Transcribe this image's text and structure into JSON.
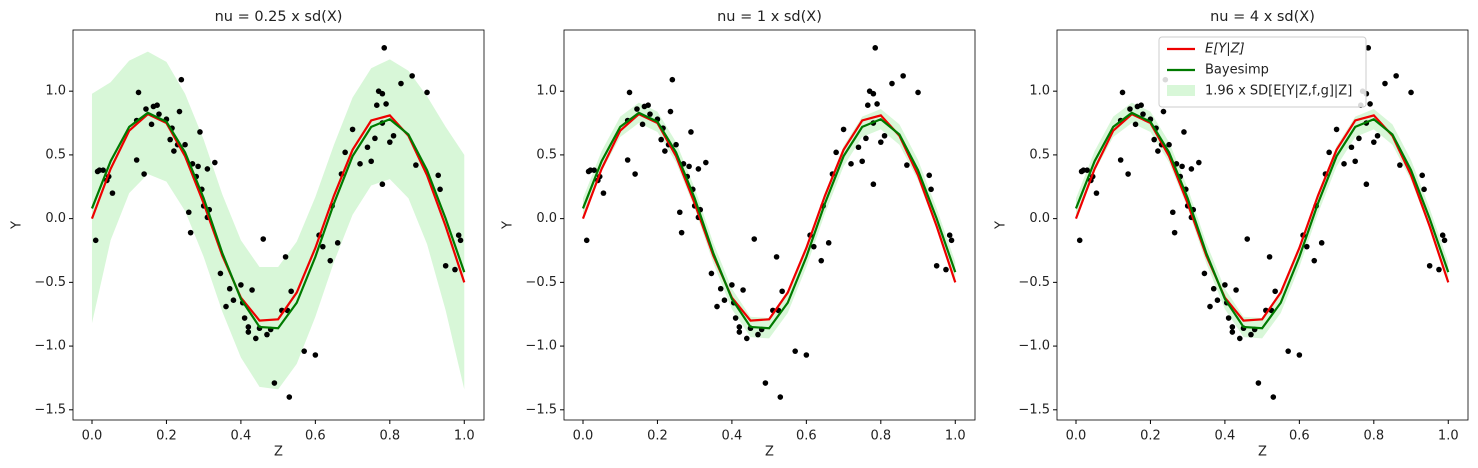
{
  "chart_data": [
    {
      "type": "line",
      "title": "nu = 0.25 x sd(X)",
      "xlabel": "Z",
      "ylabel": "Y",
      "x": [
        0,
        0.05,
        0.1,
        0.15,
        0.2,
        0.25,
        0.3,
        0.35,
        0.4,
        0.45,
        0.5,
        0.55,
        0.6,
        0.65,
        0.7,
        0.75,
        0.8,
        0.85,
        0.9,
        0.95,
        1
      ],
      "series": [
        {
          "color": "#ee0000",
          "values": [
            0,
            0.39,
            0.69,
            0.82,
            0.75,
            0.49,
            0.12,
            -0.29,
            -0.62,
            -0.8,
            -0.79,
            -0.58,
            -0.23,
            0.18,
            0.54,
            0.77,
            0.81,
            0.65,
            0.34,
            -0.06,
            -0.5
          ]
        },
        {
          "color": "#007a00",
          "values": [
            0.08,
            0.45,
            0.72,
            0.83,
            0.76,
            0.52,
            0.16,
            -0.27,
            -0.63,
            -0.85,
            -0.86,
            -0.66,
            -0.3,
            0.12,
            0.49,
            0.72,
            0.78,
            0.66,
            0.38,
            0,
            -0.42
          ]
        }
      ],
      "band": {
        "color": "#d8f7d8",
        "upper": [
          0.98,
          1.07,
          1.24,
          1.31,
          1.23,
          0.98,
          0.62,
          0.19,
          -0.17,
          -0.38,
          -0.38,
          -0.18,
          0.17,
          0.58,
          0.95,
          1.18,
          1.25,
          1.16,
          0.96,
          0.72,
          0.5
        ],
        "lower": [
          -0.82,
          -0.17,
          0.2,
          0.35,
          0.29,
          0.06,
          -0.3,
          -0.73,
          -1.09,
          -1.32,
          -1.34,
          -1.14,
          -0.77,
          -0.34,
          0.03,
          0.26,
          0.31,
          0.16,
          -0.2,
          -0.72,
          -1.34
        ]
      },
      "scatter": {
        "color": "#000000",
        "x": [
          0.01,
          0.015,
          0.02,
          0.03,
          0.04,
          0.045,
          0.055,
          0.12,
          0.12,
          0.125,
          0.14,
          0.145,
          0.16,
          0.165,
          0.175,
          0.18,
          0.2,
          0.21,
          0.215,
          0.22,
          0.235,
          0.24,
          0.25,
          0.26,
          0.265,
          0.27,
          0.28,
          0.285,
          0.29,
          0.295,
          0.3,
          0.31,
          0.315,
          0.33,
          0.345,
          0.36,
          0.37,
          0.38,
          0.4,
          0.405,
          0.41,
          0.42,
          0.42,
          0.43,
          0.44,
          0.45,
          0.46,
          0.47,
          0.48,
          0.49,
          0.51,
          0.52,
          0.525,
          0.53,
          0.535,
          0.57,
          0.6,
          0.61,
          0.62,
          0.64,
          0.645,
          0.66,
          0.67,
          0.68,
          0.7,
          0.72,
          0.74,
          0.75,
          0.76,
          0.765,
          0.77,
          0.78,
          0.785,
          0.79,
          0.8,
          0.81,
          0.83,
          0.86,
          0.87,
          0.9,
          0.93,
          0.935,
          0.95,
          0.975,
          0.985,
          0.99,
          0.78,
          0.78,
          0.23,
          0.31
        ],
        "y": [
          -0.17,
          0.37,
          0.38,
          0.38,
          0.3,
          0.33,
          0.2,
          0.77,
          0.46,
          0.99,
          0.35,
          0.86,
          0.74,
          0.88,
          0.89,
          0.82,
          0.78,
          0.62,
          0.71,
          0.53,
          0.84,
          1.09,
          0.58,
          0.05,
          -0.11,
          0.43,
          0.33,
          0.41,
          0.68,
          0.23,
          0.1,
          0.39,
          0.07,
          0.44,
          -0.43,
          -0.69,
          -0.55,
          -0.64,
          -0.52,
          -0.66,
          -0.78,
          -0.85,
          -0.89,
          -0.56,
          -0.94,
          -0.86,
          -0.16,
          -0.91,
          -0.87,
          -1.29,
          -0.72,
          -0.3,
          -0.72,
          -1.4,
          -0.57,
          -1.04,
          -1.07,
          -0.13,
          -0.22,
          -0.33,
          0.1,
          -0.19,
          0.35,
          0.52,
          0.7,
          0.43,
          0.56,
          0.45,
          0.63,
          0.89,
          1,
          0.27,
          1.34,
          0.9,
          0.6,
          0.65,
          1.06,
          1.12,
          0.42,
          0.99,
          0.34,
          0.23,
          -0.37,
          -0.4,
          -0.13,
          -0.17,
          0.98,
          0.75,
          0.58,
          0.01
        ]
      },
      "xlim": [
        -0.051,
        1.053
      ],
      "ylim": [
        -1.58,
        1.48
      ],
      "xticks": [
        {
          "value": 0,
          "label": "0.0"
        },
        0.2,
        0.4,
        0.6,
        0.8,
        {
          "value": 1,
          "label": "1.0"
        }
      ],
      "yticks": [
        {
          "value": -1.5,
          "label": "−1.5"
        },
        {
          "value": -1,
          "label": "−1.0"
        },
        {
          "value": -0.5,
          "label": "−0.5"
        },
        {
          "value": 0,
          "label": "0.0"
        },
        0.5,
        {
          "value": 1,
          "label": "1.0"
        }
      ]
    },
    {
      "type": "line",
      "title": "nu = 1 x sd(X)",
      "xlabel": "Z",
      "ylabel": "Y",
      "x": [
        0,
        0.05,
        0.1,
        0.15,
        0.2,
        0.25,
        0.3,
        0.35,
        0.4,
        0.45,
        0.5,
        0.55,
        0.6,
        0.65,
        0.7,
        0.75,
        0.8,
        0.85,
        0.9,
        0.95,
        1
      ],
      "series": [
        {
          "color": "#ee0000",
          "values": [
            0,
            0.39,
            0.69,
            0.82,
            0.75,
            0.49,
            0.12,
            -0.29,
            -0.62,
            -0.8,
            -0.79,
            -0.58,
            -0.23,
            0.18,
            0.54,
            0.77,
            0.81,
            0.65,
            0.34,
            -0.06,
            -0.5
          ]
        },
        {
          "color": "#007a00",
          "values": [
            0.08,
            0.45,
            0.72,
            0.83,
            0.76,
            0.52,
            0.16,
            -0.27,
            -0.63,
            -0.85,
            -0.86,
            -0.66,
            -0.3,
            0.12,
            0.49,
            0.72,
            0.78,
            0.66,
            0.38,
            0,
            -0.42
          ]
        }
      ],
      "band": {
        "color": "#d8f7d8",
        "upper": [
          0.16,
          0.53,
          0.8,
          0.91,
          0.84,
          0.6,
          0.24,
          -0.19,
          -0.55,
          -0.77,
          -0.78,
          -0.58,
          -0.22,
          0.2,
          0.57,
          0.8,
          0.86,
          0.74,
          0.46,
          0.08,
          -0.34
        ],
        "lower": [
          0,
          0.37,
          0.64,
          0.75,
          0.68,
          0.44,
          0.08,
          -0.35,
          -0.71,
          -0.93,
          -0.94,
          -0.74,
          -0.38,
          0.04,
          0.41,
          0.64,
          0.7,
          0.58,
          0.3,
          -0.08,
          -0.5
        ]
      },
      "scatter": {
        "color": "#000000",
        "x": [
          0.01,
          0.015,
          0.02,
          0.03,
          0.04,
          0.045,
          0.055,
          0.12,
          0.12,
          0.125,
          0.14,
          0.145,
          0.16,
          0.165,
          0.175,
          0.18,
          0.2,
          0.21,
          0.215,
          0.22,
          0.235,
          0.24,
          0.25,
          0.26,
          0.265,
          0.27,
          0.28,
          0.285,
          0.29,
          0.295,
          0.3,
          0.31,
          0.315,
          0.33,
          0.345,
          0.36,
          0.37,
          0.38,
          0.4,
          0.405,
          0.41,
          0.42,
          0.42,
          0.43,
          0.44,
          0.45,
          0.46,
          0.47,
          0.48,
          0.49,
          0.51,
          0.52,
          0.525,
          0.53,
          0.535,
          0.57,
          0.6,
          0.61,
          0.62,
          0.64,
          0.645,
          0.66,
          0.67,
          0.68,
          0.7,
          0.72,
          0.74,
          0.75,
          0.76,
          0.765,
          0.77,
          0.78,
          0.785,
          0.79,
          0.8,
          0.81,
          0.83,
          0.86,
          0.87,
          0.9,
          0.93,
          0.935,
          0.95,
          0.975,
          0.985,
          0.99,
          0.78,
          0.78,
          0.23,
          0.31
        ],
        "y": [
          -0.17,
          0.37,
          0.38,
          0.38,
          0.3,
          0.33,
          0.2,
          0.77,
          0.46,
          0.99,
          0.35,
          0.86,
          0.74,
          0.88,
          0.89,
          0.82,
          0.78,
          0.62,
          0.71,
          0.53,
          0.84,
          1.09,
          0.58,
          0.05,
          -0.11,
          0.43,
          0.33,
          0.41,
          0.68,
          0.23,
          0.1,
          0.39,
          0.07,
          0.44,
          -0.43,
          -0.69,
          -0.55,
          -0.64,
          -0.52,
          -0.66,
          -0.78,
          -0.85,
          -0.89,
          -0.56,
          -0.94,
          -0.86,
          -0.16,
          -0.91,
          -0.87,
          -1.29,
          -0.72,
          -0.3,
          -0.72,
          -1.4,
          -0.57,
          -1.04,
          -1.07,
          -0.13,
          -0.22,
          -0.33,
          0.1,
          -0.19,
          0.35,
          0.52,
          0.7,
          0.43,
          0.56,
          0.45,
          0.63,
          0.89,
          1,
          0.27,
          1.34,
          0.9,
          0.6,
          0.65,
          1.06,
          1.12,
          0.42,
          0.99,
          0.34,
          0.23,
          -0.37,
          -0.4,
          -0.13,
          -0.17,
          0.98,
          0.75,
          0.58,
          0.01
        ]
      },
      "xlim": [
        -0.051,
        1.053
      ],
      "ylim": [
        -1.58,
        1.48
      ],
      "xticks": [
        {
          "value": 0,
          "label": "0.0"
        },
        0.2,
        0.4,
        0.6,
        0.8,
        {
          "value": 1,
          "label": "1.0"
        }
      ],
      "yticks": [
        {
          "value": -1.5,
          "label": "−1.5"
        },
        {
          "value": -1,
          "label": "−1.0"
        },
        {
          "value": -0.5,
          "label": "−0.5"
        },
        {
          "value": 0,
          "label": "0.0"
        },
        0.5,
        {
          "value": 1,
          "label": "1.0"
        }
      ]
    },
    {
      "type": "line",
      "title": "nu = 4 x sd(X)",
      "xlabel": "Z",
      "ylabel": "Y",
      "x": [
        0,
        0.05,
        0.1,
        0.15,
        0.2,
        0.25,
        0.3,
        0.35,
        0.4,
        0.45,
        0.5,
        0.55,
        0.6,
        0.65,
        0.7,
        0.75,
        0.8,
        0.85,
        0.9,
        0.95,
        1
      ],
      "series": [
        {
          "name": "E[Y|Z]",
          "color": "#ee0000",
          "values": [
            0,
            0.39,
            0.69,
            0.82,
            0.75,
            0.49,
            0.12,
            -0.29,
            -0.62,
            -0.8,
            -0.79,
            -0.58,
            -0.23,
            0.18,
            0.54,
            0.77,
            0.81,
            0.65,
            0.34,
            -0.06,
            -0.5
          ]
        },
        {
          "name": "Bayesimp",
          "color": "#007a00",
          "values": [
            0.08,
            0.45,
            0.72,
            0.83,
            0.76,
            0.52,
            0.16,
            -0.27,
            -0.63,
            -0.85,
            -0.86,
            -0.66,
            -0.3,
            0.12,
            0.49,
            0.72,
            0.78,
            0.66,
            0.38,
            0,
            -0.42
          ]
        }
      ],
      "band": {
        "name": "1.96 x SD[E[Y|Z,f,g]|Z]",
        "color": "#d8f7d8",
        "upper": [
          0.16,
          0.53,
          0.8,
          0.91,
          0.84,
          0.6,
          0.24,
          -0.19,
          -0.55,
          -0.77,
          -0.78,
          -0.58,
          -0.22,
          0.2,
          0.57,
          0.8,
          0.86,
          0.74,
          0.46,
          0.08,
          -0.34
        ],
        "lower": [
          0,
          0.37,
          0.64,
          0.75,
          0.68,
          0.44,
          0.08,
          -0.35,
          -0.71,
          -0.93,
          -0.94,
          -0.74,
          -0.38,
          0.04,
          0.41,
          0.64,
          0.7,
          0.58,
          0.3,
          -0.08,
          -0.5
        ]
      },
      "scatter": {
        "color": "#000000",
        "x": [
          0.01,
          0.015,
          0.02,
          0.03,
          0.04,
          0.045,
          0.055,
          0.12,
          0.12,
          0.125,
          0.14,
          0.145,
          0.16,
          0.165,
          0.175,
          0.18,
          0.2,
          0.21,
          0.215,
          0.22,
          0.235,
          0.24,
          0.25,
          0.26,
          0.265,
          0.27,
          0.28,
          0.285,
          0.29,
          0.295,
          0.3,
          0.31,
          0.315,
          0.33,
          0.345,
          0.36,
          0.37,
          0.38,
          0.4,
          0.405,
          0.41,
          0.42,
          0.42,
          0.43,
          0.44,
          0.45,
          0.46,
          0.47,
          0.48,
          0.49,
          0.51,
          0.52,
          0.525,
          0.53,
          0.535,
          0.57,
          0.6,
          0.61,
          0.62,
          0.64,
          0.645,
          0.66,
          0.67,
          0.68,
          0.7,
          0.72,
          0.74,
          0.75,
          0.76,
          0.765,
          0.77,
          0.78,
          0.785,
          0.79,
          0.8,
          0.81,
          0.83,
          0.86,
          0.87,
          0.9,
          0.93,
          0.935,
          0.95,
          0.975,
          0.985,
          0.99,
          0.78,
          0.78,
          0.23,
          0.31
        ],
        "y": [
          -0.17,
          0.37,
          0.38,
          0.38,
          0.3,
          0.33,
          0.2,
          0.77,
          0.46,
          0.99,
          0.35,
          0.86,
          0.74,
          0.88,
          0.89,
          0.82,
          0.78,
          0.62,
          0.71,
          0.53,
          0.84,
          1.09,
          0.58,
          0.05,
          -0.11,
          0.43,
          0.33,
          0.41,
          0.68,
          0.23,
          0.1,
          0.39,
          0.07,
          0.44,
          -0.43,
          -0.69,
          -0.55,
          -0.64,
          -0.52,
          -0.66,
          -0.78,
          -0.85,
          -0.89,
          -0.56,
          -0.94,
          -0.86,
          -0.16,
          -0.91,
          -0.87,
          -1.29,
          -0.72,
          -0.3,
          -0.72,
          -1.4,
          -0.57,
          -1.04,
          -1.07,
          -0.13,
          -0.22,
          -0.33,
          0.1,
          -0.19,
          0.35,
          0.52,
          0.7,
          0.43,
          0.56,
          0.45,
          0.63,
          0.89,
          1,
          0.27,
          1.34,
          0.9,
          0.6,
          0.65,
          1.06,
          1.12,
          0.42,
          0.99,
          0.34,
          0.23,
          -0.37,
          -0.4,
          -0.13,
          -0.17,
          0.98,
          0.75,
          0.58,
          0.01
        ]
      },
      "xlim": [
        -0.051,
        1.053
      ],
      "ylim": [
        -1.58,
        1.48
      ],
      "xticks": [
        {
          "value": 0,
          "label": "0.0"
        },
        0.2,
        0.4,
        0.6,
        0.8,
        {
          "value": 1,
          "label": "1.0"
        }
      ],
      "yticks": [
        {
          "value": -1.5,
          "label": "−1.5"
        },
        {
          "value": -1,
          "label": "−1.0"
        },
        {
          "value": -0.5,
          "label": "−0.5"
        },
        {
          "value": 0,
          "label": "0.0"
        },
        0.5,
        {
          "value": 1,
          "label": "1.0"
        }
      ],
      "legend": "upper center"
    }
  ]
}
